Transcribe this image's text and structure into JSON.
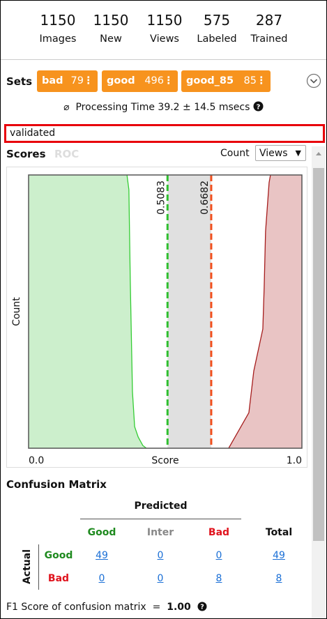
{
  "stats": [
    {
      "value": 1150,
      "label": "Images"
    },
    {
      "value": 1150,
      "label": "New"
    },
    {
      "value": 1150,
      "label": "Views"
    },
    {
      "value": 575,
      "label": "Labeled"
    },
    {
      "value": 287,
      "label": "Trained"
    }
  ],
  "sets": {
    "title": "Sets",
    "chips": [
      {
        "name": "bad",
        "count": 79
      },
      {
        "name": "good",
        "count": 496
      },
      {
        "name": "good_85",
        "count": 85
      }
    ]
  },
  "processing_time": {
    "symbol": "⌀",
    "label": "Processing Time",
    "mean": 39.2,
    "pm": "±",
    "std": 14.5,
    "unit": "msecs"
  },
  "filter": "validated",
  "scores": {
    "title": "Scores",
    "tab": "ROC",
    "count_label": "Count",
    "select": "Views"
  },
  "chart_data": {
    "type": "area",
    "xlabel": "Score",
    "ylabel": "Count",
    "xlim": [
      0,
      1
    ],
    "xticks": [
      {
        "value": 0,
        "label": "0.0"
      },
      {
        "value": 1,
        "label": "1.0"
      }
    ],
    "ylim": [
      0,
      1
    ],
    "thresholds": [
      {
        "value": 0.5083,
        "color": "#2fbf2f",
        "band": "#e0e0e0"
      },
      {
        "value": 0.6682,
        "color": "#f0501e"
      }
    ],
    "series": [
      {
        "name": "good",
        "color": "#33cc33",
        "fill": "#ccefcc",
        "side": "left",
        "x": [
          0.36,
          0.367,
          0.372,
          0.38,
          0.388,
          0.401,
          0.418,
          0.431
        ],
        "values": [
          1.0,
          0.946,
          0.615,
          0.207,
          0.079,
          0.041,
          0.01,
          0
        ]
      },
      {
        "name": "bad",
        "color": "#a51c1c",
        "fill": "#e9c4c4",
        "side": "right",
        "x": [
          0.885,
          0.88,
          0.867,
          0.862,
          0.857,
          0.824,
          0.806,
          0.732
        ],
        "values": [
          1.0,
          0.972,
          0.793,
          0.589,
          0.436,
          0.283,
          0.13,
          0
        ]
      }
    ]
  },
  "confusion_matrix": {
    "title": "Confusion Matrix",
    "predicted_label": "Predicted",
    "actual_label": "Actual",
    "columns": [
      "Good",
      "Inter",
      "Bad",
      "Total"
    ],
    "rows": [
      {
        "label": "Good",
        "values": [
          49,
          0,
          0,
          49
        ]
      },
      {
        "label": "Bad",
        "values": [
          0,
          0,
          8,
          8
        ]
      }
    ]
  },
  "f1": {
    "label": "F1 Score of confusion matrix",
    "equals": "=",
    "value": {
      "value": 1,
      "label": "1.00"
    }
  }
}
